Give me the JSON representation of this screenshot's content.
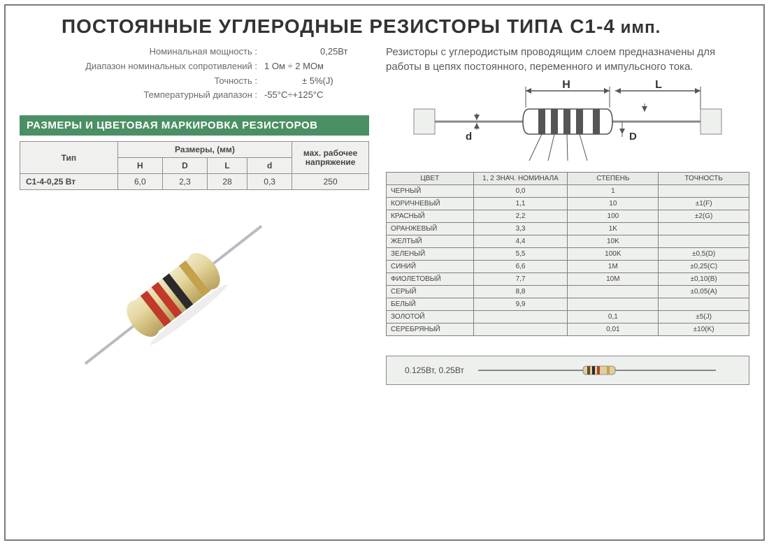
{
  "title_main": "ПОСТОЯННЫЕ УГЛЕРОДНЫЕ РЕЗИСТОРЫ ТИПА С1-4",
  "title_suffix": " имп.",
  "specs": {
    "rows": [
      {
        "label": "Номинальная мощность :",
        "value": "0,25Вт"
      },
      {
        "label": "Диапазон номинальных сопротивлений :",
        "value": "1 Ом ÷ 2 МОм"
      },
      {
        "label": "Точность :",
        "value": "± 5%(J)"
      },
      {
        "label": "Температурный диапазон :",
        "value": "-55°C÷+125°C"
      }
    ]
  },
  "description": "Резисторы с углеродистым проводящим слоем предназначены для работы в цепях постоянного, переменного и импульсного тока.",
  "section_header": "РАЗМЕРЫ И ЦВЕТОВАЯ МАРКИРОВКА РЕЗИСТОРОВ",
  "size_table": {
    "hdr_type": "Тип",
    "hdr_sizes": "Размеры, (мм)",
    "hdr_max": "мах. рабочее напряжение",
    "cols": [
      "H",
      "D",
      "L",
      "d"
    ],
    "row_label": "С1-4-0,25 Вт",
    "row_vals": [
      "6,0",
      "2,3",
      "28",
      "0,3"
    ],
    "row_max": "250"
  },
  "dim_labels": {
    "H": "H",
    "L": "L",
    "D": "D",
    "d": "d"
  },
  "color_table": {
    "headers": [
      "ЦВЕТ",
      "1, 2 ЗНАЧ. НОМИНАЛА",
      "СТЕПЕНЬ",
      "ТОЧНОСТЬ"
    ],
    "rows": [
      [
        "ЧЕРНЫЙ",
        "0,0",
        "1",
        ""
      ],
      [
        "КОРИЧНЕВЫЙ",
        "1,1",
        "10",
        "±1(F)"
      ],
      [
        "КРАСНЫЙ",
        "2,2",
        "100",
        "±2(G)"
      ],
      [
        "ОРАНЖЕВЫЙ",
        "3,3",
        "1K",
        ""
      ],
      [
        "ЖЕЛТЫЙ",
        "4,4",
        "10K",
        ""
      ],
      [
        "ЗЕЛЕНЫЙ",
        "5,5",
        "100K",
        "±0,5(D)"
      ],
      [
        "СИНИЙ",
        "6,6",
        "1M",
        "±0,25(C)"
      ],
      [
        "ФИОЛЕТОВЫЙ",
        "7,7",
        "10M",
        "±0,10(B)"
      ],
      [
        "СЕРЫЙ",
        "8,8",
        "",
        "±0,05(A)"
      ],
      [
        "БЕЛЫЙ",
        "9,9",
        "",
        ""
      ],
      [
        "ЗОЛОТОЙ",
        "",
        "0,1",
        "±5(J)"
      ],
      [
        "СЕРЕБРЯНЫЙ",
        "",
        "0,01",
        "±10(K)"
      ]
    ]
  },
  "footer_label": "0.125Вт, 0.25Вт",
  "colors": {
    "header_bg": "#4b8f64",
    "border": "#7a7a7a",
    "cell_bg": "#eef0ed",
    "body_beige": "#d8c590",
    "band_red": "#c0392b",
    "band_brown": "#6b4a2b",
    "band_gold": "#c2a24a",
    "band_black": "#2a2a2a",
    "lead": "#9aa0a6"
  }
}
